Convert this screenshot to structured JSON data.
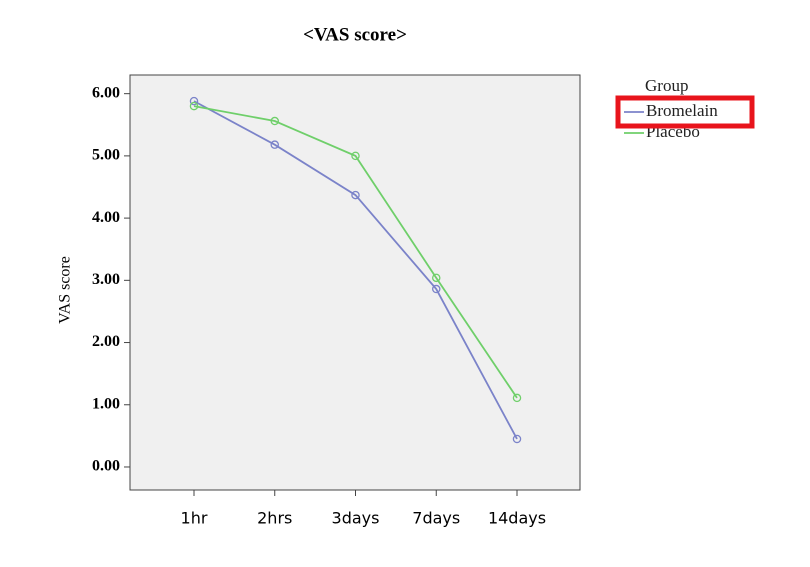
{
  "chart_data": {
    "type": "line",
    "title": "<VAS score>",
    "ylabel": "VAS score",
    "categories": [
      "1hr",
      "2hrs",
      "3days",
      "7days",
      "14days"
    ],
    "series": [
      {
        "name": "Bromelain",
        "color": "#7b83c9",
        "values": [
          5.88,
          5.18,
          4.37,
          2.86,
          0.45
        ]
      },
      {
        "name": "Placebo",
        "color": "#6fcf6a",
        "values": [
          5.8,
          5.56,
          5.0,
          3.04,
          1.11
        ]
      }
    ],
    "ylim": [
      -0.37,
      6.3
    ],
    "yticks": [
      {
        "value": 0,
        "label": "0.00"
      },
      {
        "value": 1,
        "label": "1.00"
      },
      {
        "value": 2,
        "label": "2.00"
      },
      {
        "value": 3,
        "label": "3.00"
      },
      {
        "value": 4,
        "label": "4.00"
      },
      {
        "value": 5,
        "label": "5.00"
      },
      {
        "value": 6,
        "label": "6.00"
      }
    ],
    "legend_title": "Group",
    "grid": false
  }
}
